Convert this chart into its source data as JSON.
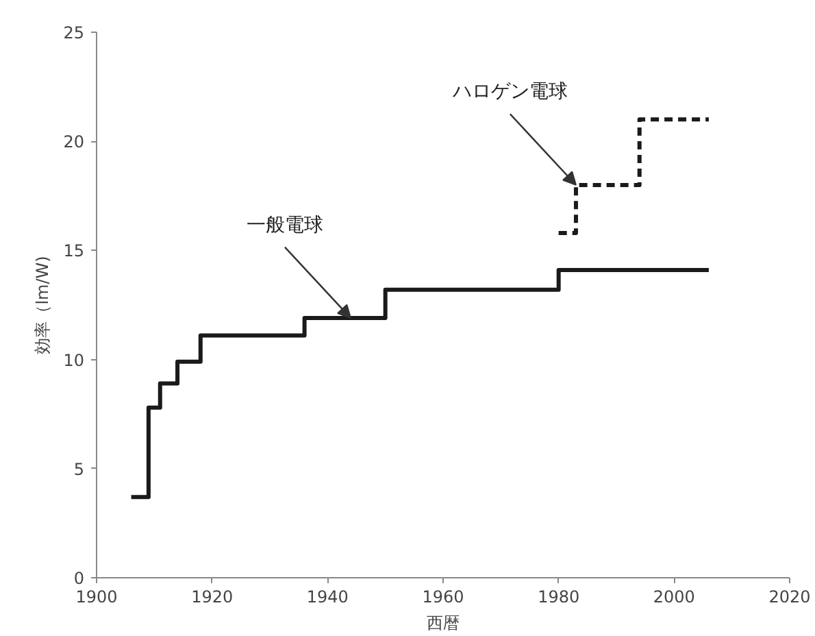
{
  "chart_data": {
    "type": "step",
    "xlabel": "西暦",
    "ylabel": "効率（lm/W)",
    "xlim": [
      1900,
      2020
    ],
    "xticks": [
      1900,
      1920,
      1940,
      1960,
      1980,
      2000,
      2020
    ],
    "ylim": [
      0,
      25
    ],
    "yticks": [
      0,
      5,
      10,
      15,
      20,
      25
    ],
    "grid": false,
    "series": [
      {
        "color": "#1a1a1a",
        "line_style": "solid",
        "x": [
          1906,
          1909,
          1911,
          1914,
          1918,
          1936,
          1950,
          1980,
          2006
        ],
        "values": [
          3.7,
          7.8,
          8.9,
          9.9,
          11.1,
          11.9,
          13.2,
          14.1,
          14.1
        ]
      },
      {
        "color": "#1a1a1a",
        "line_style": "dashed",
        "x": [
          1980,
          1983,
          1994,
          2006
        ],
        "values": [
          15.8,
          18.0,
          21.0,
          21.0
        ]
      }
    ],
    "annotations": [
      {
        "text": "一般電球",
        "x": 1944,
        "y": 11.9
      },
      {
        "text": "ハロゲン電球",
        "x": 1983,
        "y": 18.0
      }
    ]
  }
}
